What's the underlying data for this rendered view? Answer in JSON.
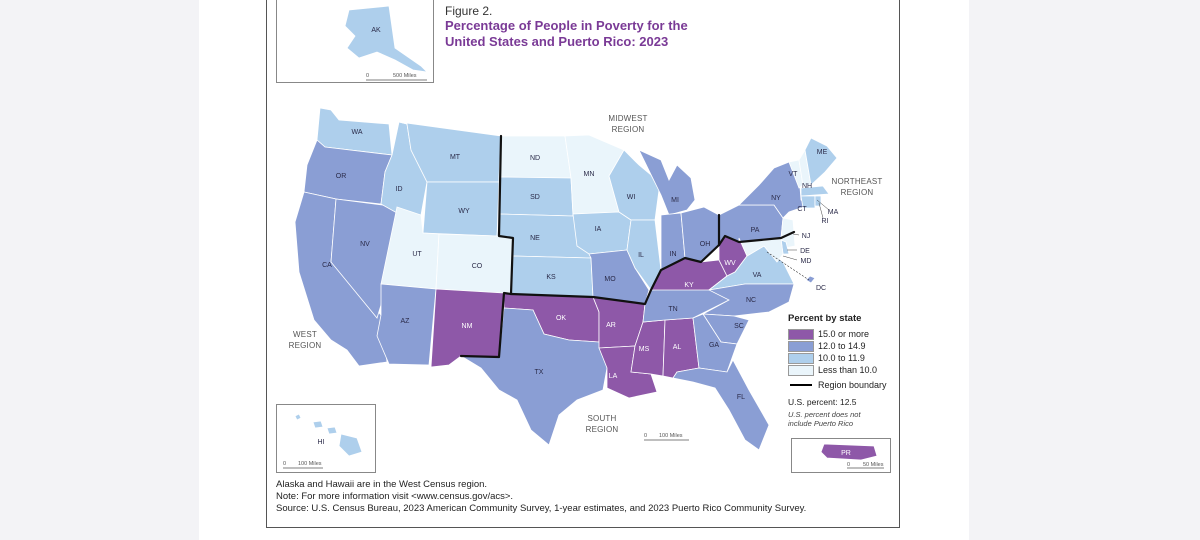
{
  "figure": {
    "label": "Figure 2.",
    "title_line1": "Percentage of People in Poverty for the",
    "title_line2": "United States and Puerto Rico: 2023"
  },
  "colors": {
    "high": "#8e58a8",
    "mid": "#8a9ed4",
    "low": "#aecfec",
    "lowest": "#eaf5fb",
    "boundary": "#111111"
  },
  "regions": {
    "midwest": [
      "MIDWEST",
      "REGION"
    ],
    "northeast": [
      "NORTHEAST",
      "REGION"
    ],
    "west": [
      "WEST",
      "REGION"
    ],
    "south": [
      "SOUTH",
      "REGION"
    ]
  },
  "legend": {
    "title": "Percent by state",
    "items": [
      {
        "label": "15.0 or more",
        "color": "#8e58a8"
      },
      {
        "label": "12.0 to 14.9",
        "color": "#8a9ed4"
      },
      {
        "label": "10.0 to 11.9",
        "color": "#aecfec"
      },
      {
        "label": "Less than 10.0",
        "color": "#eaf5fb"
      }
    ],
    "boundary_label": "Region boundary",
    "us_percent": "U.S. percent: 12.5",
    "us_note": "U.S. percent does not include Puerto Rico"
  },
  "scales": {
    "ak": [
      "0",
      "500 Miles"
    ],
    "main": [
      "0",
      "100 Miles"
    ],
    "hi": [
      "0",
      "100 Miles"
    ],
    "pr": [
      "0",
      "50 Miles"
    ]
  },
  "states": {
    "WA": {
      "label": "WA",
      "cls": "low"
    },
    "OR": {
      "label": "OR",
      "cls": "mid"
    },
    "CA": {
      "label": "CA",
      "cls": "mid"
    },
    "NV": {
      "label": "NV",
      "cls": "mid"
    },
    "ID": {
      "label": "ID",
      "cls": "low"
    },
    "MT": {
      "label": "MT",
      "cls": "low"
    },
    "WY": {
      "label": "WY",
      "cls": "low"
    },
    "UT": {
      "label": "UT",
      "cls": "lowest"
    },
    "CO": {
      "label": "CO",
      "cls": "lowest"
    },
    "AZ": {
      "label": "AZ",
      "cls": "mid"
    },
    "NM": {
      "label": "NM",
      "cls": "high"
    },
    "ND": {
      "label": "ND",
      "cls": "lowest"
    },
    "SD": {
      "label": "SD",
      "cls": "low"
    },
    "NE": {
      "label": "NE",
      "cls": "low"
    },
    "KS": {
      "label": "KS",
      "cls": "low"
    },
    "MN": {
      "label": "MN",
      "cls": "lowest"
    },
    "IA": {
      "label": "IA",
      "cls": "low"
    },
    "MO": {
      "label": "MO",
      "cls": "mid"
    },
    "WI": {
      "label": "WI",
      "cls": "low"
    },
    "IL": {
      "label": "IL",
      "cls": "low"
    },
    "MI": {
      "label": "MI",
      "cls": "mid"
    },
    "IN": {
      "label": "IN",
      "cls": "mid"
    },
    "OH": {
      "label": "OH",
      "cls": "mid"
    },
    "OK": {
      "label": "OK",
      "cls": "high"
    },
    "TX": {
      "label": "TX",
      "cls": "mid"
    },
    "AR": {
      "label": "AR",
      "cls": "high"
    },
    "LA": {
      "label": "LA",
      "cls": "high"
    },
    "MS": {
      "label": "MS",
      "cls": "high"
    },
    "AL": {
      "label": "AL",
      "cls": "high"
    },
    "TN": {
      "label": "TN",
      "cls": "mid"
    },
    "KY": {
      "label": "KY",
      "cls": "high"
    },
    "WV": {
      "label": "WV",
      "cls": "high"
    },
    "VA": {
      "label": "VA",
      "cls": "low"
    },
    "NC": {
      "label": "NC",
      "cls": "mid"
    },
    "SC": {
      "label": "SC",
      "cls": "mid"
    },
    "GA": {
      "label": "GA",
      "cls": "mid"
    },
    "FL": {
      "label": "FL",
      "cls": "mid"
    },
    "PA": {
      "label": "PA",
      "cls": "mid"
    },
    "NY": {
      "label": "NY",
      "cls": "mid"
    },
    "VT": {
      "label": "VT",
      "cls": "lowest"
    },
    "NH": {
      "label": "NH",
      "cls": "lowest"
    },
    "ME": {
      "label": "ME",
      "cls": "low"
    },
    "MA": {
      "label": "MA",
      "cls": "low"
    },
    "RI": {
      "label": "RI",
      "cls": "low"
    },
    "CT": {
      "label": "CT",
      "cls": "low"
    },
    "NJ": {
      "label": "NJ",
      "cls": "lowest"
    },
    "DE": {
      "label": "DE",
      "cls": "low"
    },
    "MD": {
      "label": "MD",
      "cls": "lowest"
    },
    "DC": {
      "label": "DC",
      "cls": "mid"
    },
    "AK": {
      "label": "AK",
      "cls": "low"
    },
    "HI": {
      "label": "HI",
      "cls": "low"
    },
    "PR": {
      "label": "PR",
      "cls": "high"
    }
  },
  "footnotes": [
    "Alaska and Hawaii are in the West Census region.",
    "Note: For more information visit <www.census.gov/acs>.",
    "Source: U.S. Census Bureau, 2023 American Community Survey, 1-year estimates, and 2023 Puerto Rico Community Survey."
  ]
}
